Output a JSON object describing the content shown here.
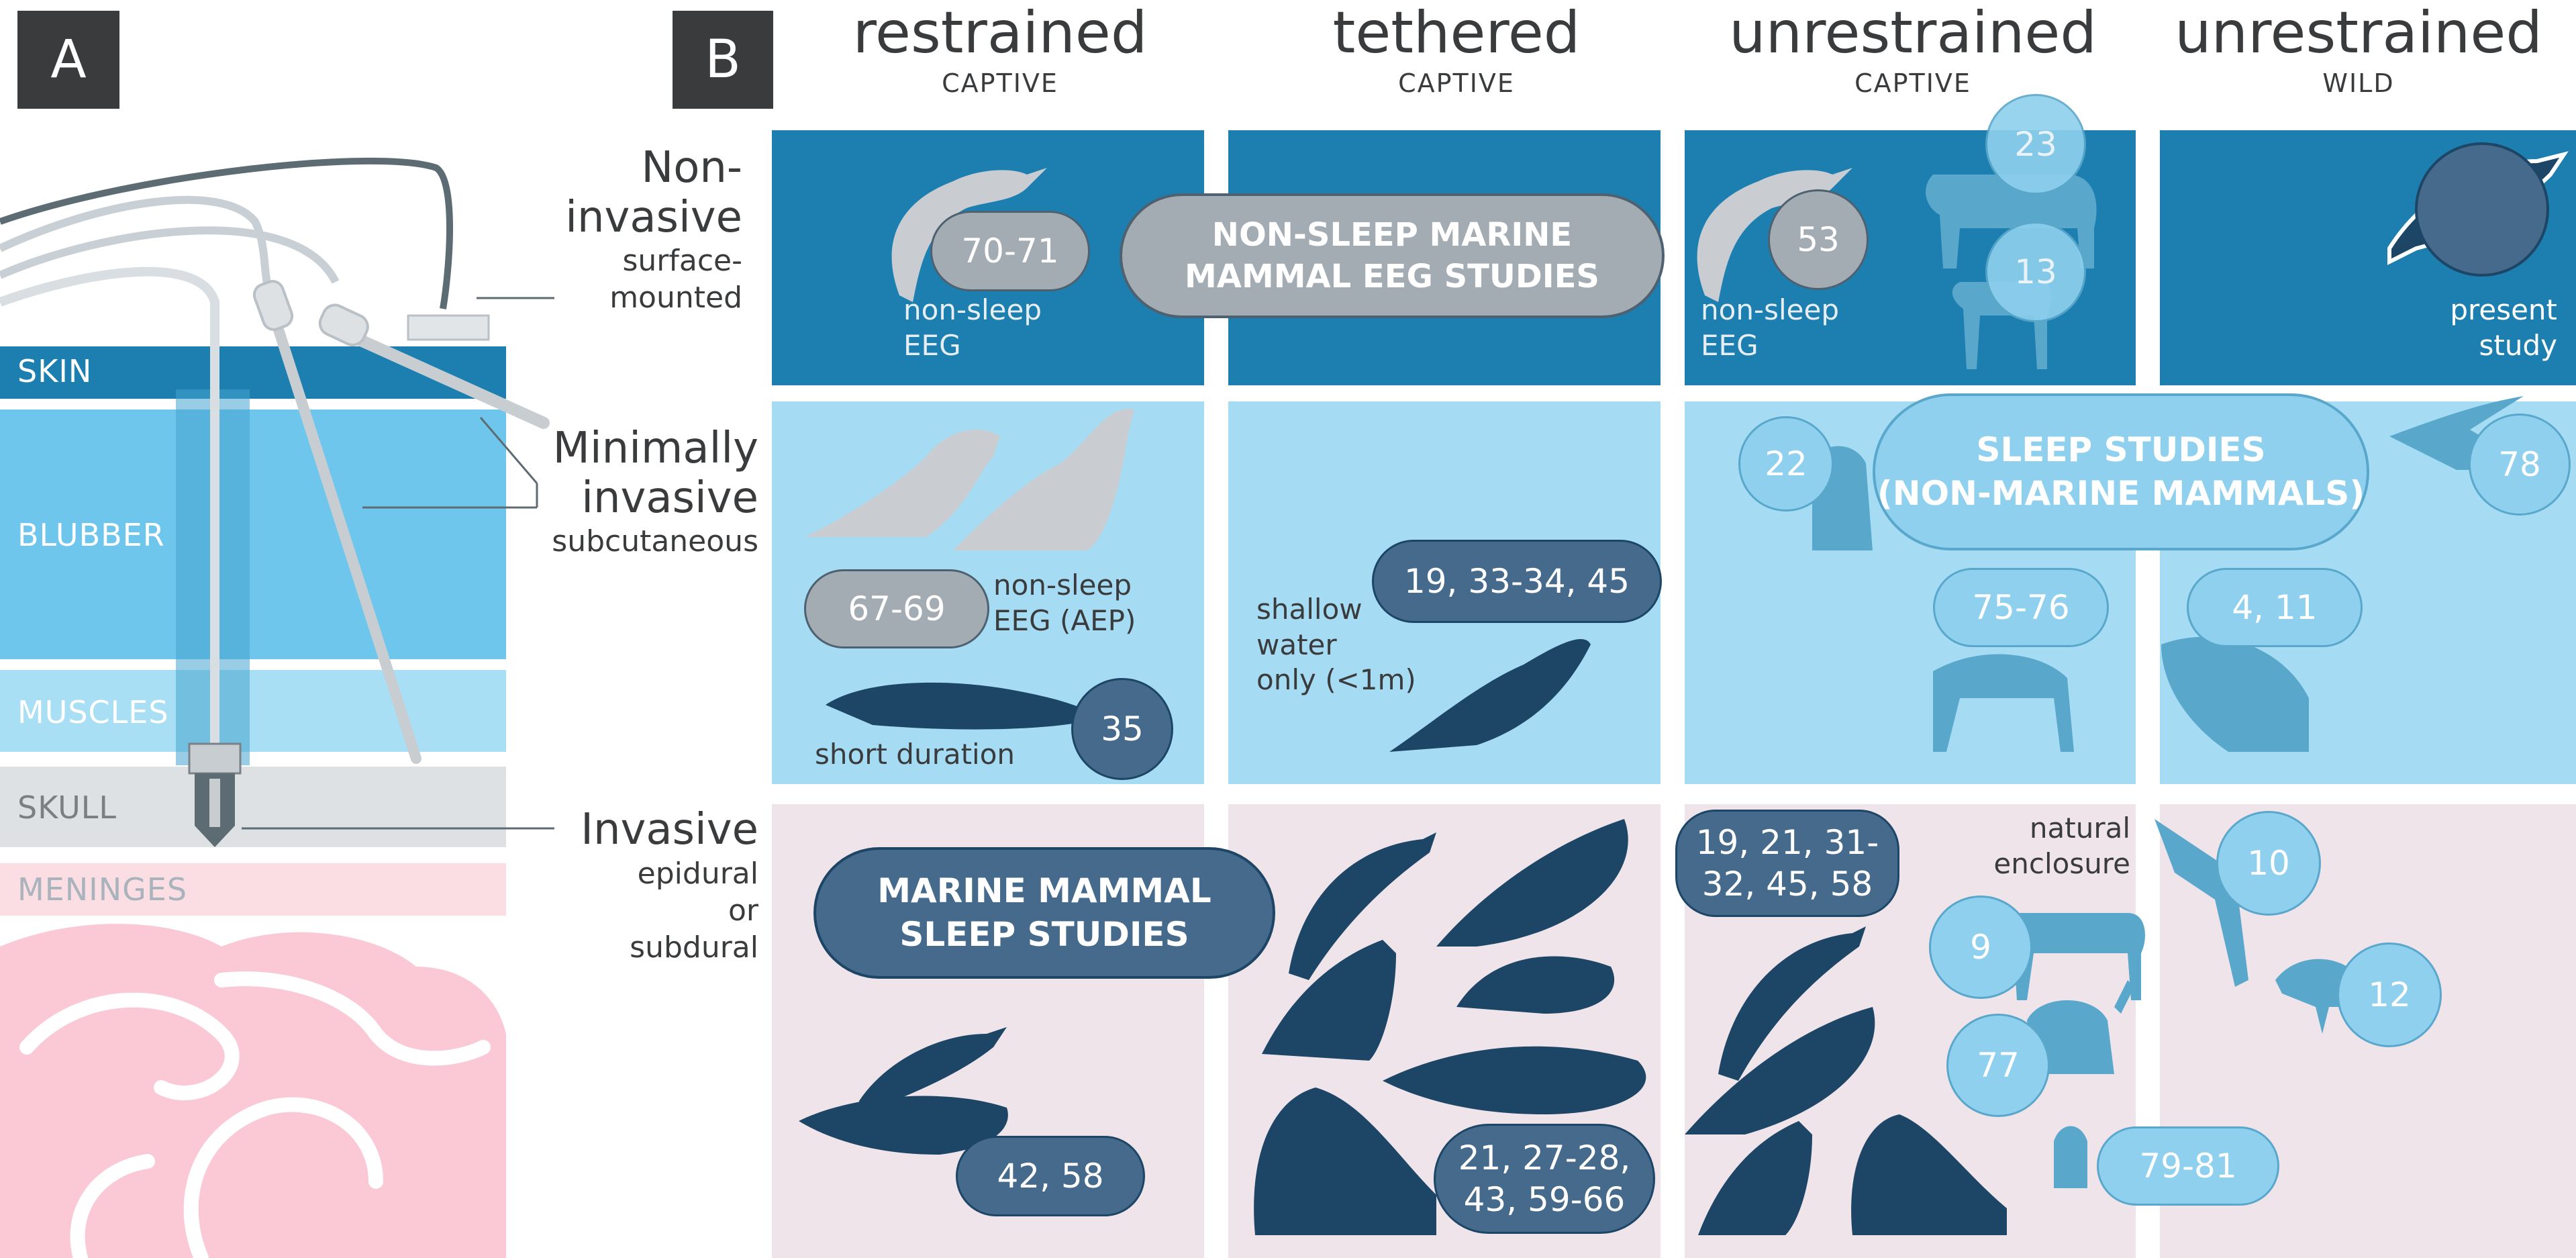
{
  "panel_a": {
    "label": "A",
    "layers": {
      "skin": "SKIN",
      "blubber": "BLUBBER",
      "muscles": "MUSCLES",
      "skull": "SKULL",
      "meninges": "MENINGES",
      "brain": "BRAIN"
    }
  },
  "panel_b": {
    "label": "B",
    "columns": [
      {
        "title": "restrained",
        "subtitle": "CAPTIVE"
      },
      {
        "title": "tethered",
        "subtitle": "CAPTIVE"
      },
      {
        "title": "unrestrained",
        "subtitle": "CAPTIVE"
      },
      {
        "title": "unrestrained",
        "subtitle": "WILD"
      }
    ],
    "rows": [
      {
        "title_line1": "Non-",
        "title_line2": "invasive",
        "sub_line1": "surface-",
        "sub_line2": "mounted"
      },
      {
        "title_line1": "Minimally",
        "title_line2": "invasive",
        "sub_line1": "subcutaneous",
        "sub_line2": ""
      },
      {
        "title_line1": "Invasive",
        "title_line2": "",
        "sub_line1": "epidural",
        "sub_line2": "or",
        "sub_line3": "subdural"
      }
    ],
    "legend": {
      "non_sleep_marine_line1": "NON-SLEEP MARINE",
      "non_sleep_marine_line2": "MAMMAL EEG STUDIES",
      "sleep_non_marine_line1": "SLEEP STUDIES",
      "sleep_non_marine_line2": "(NON-MARINE MAMMALS)",
      "marine_sleep_line1": "MARINE MAMMAL",
      "marine_sleep_line2": "SLEEP STUDIES"
    },
    "refs": {
      "r7071": "70-71",
      "r53": "53",
      "r23": "23",
      "r13": "13",
      "r6769": "67-69",
      "r35": "35",
      "r19_33": "19, 33-34, 45",
      "r22": "22",
      "r78": "78",
      "r7576": "75-76",
      "r4_11": "4, 11",
      "r42_58": "42, 58",
      "r21_27_line1": "21, 27-28,",
      "r21_27_line2": "43, 59-66",
      "r19_21_line1": "19, 21, 31-",
      "r19_21_line2": "32, 45, 58",
      "r10": "10",
      "r9": "9",
      "r12": "12",
      "r77": "77",
      "r7981": "79-81"
    },
    "notes": {
      "non_sleep_eeg_1a": "non-sleep",
      "non_sleep_eeg_1b": "EEG",
      "non_sleep_eeg_2a": "non-sleep",
      "non_sleep_eeg_2b": "EEG",
      "present_a": "present",
      "present_b": "study",
      "aep_a": "non-sleep",
      "aep_b": "EEG (AEP)",
      "short_duration": "short duration",
      "shallow_a": "shallow",
      "shallow_b": "water",
      "shallow_c": "only (<1m)",
      "natural_a": "natural",
      "natural_b": "enclosure"
    }
  },
  "colors": {
    "dark_blue": "#1c7fb0",
    "light_blue": "#9edcf3",
    "pink": "#efe4ea",
    "navy": "#1d4565",
    "slate": "#456a8b",
    "gray": "#a4acb3",
    "mid_blue": "#5aa7cc",
    "pale_circle": "#8fd0ee"
  }
}
